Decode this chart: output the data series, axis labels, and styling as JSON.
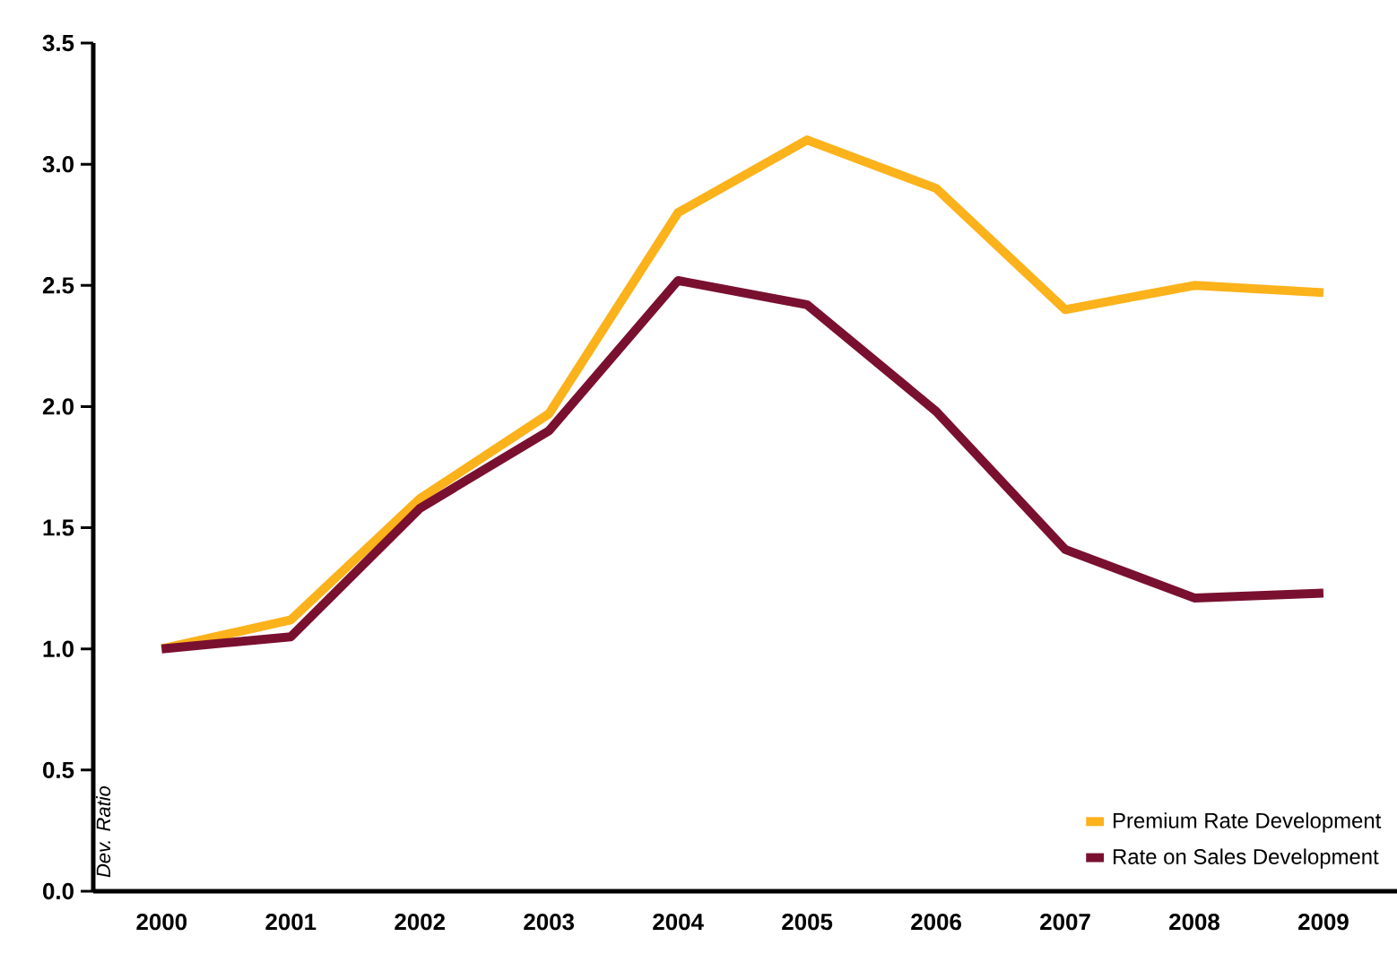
{
  "chart_data": {
    "type": "line",
    "ylabel": "Dev. Ratio",
    "categories": [
      "2000",
      "2001",
      "2002",
      "2003",
      "2004",
      "2005",
      "2006",
      "2007",
      "2008",
      "2009"
    ],
    "series": [
      {
        "name": "Premium Rate Development",
        "color": "#fbb21b",
        "values": [
          1.0,
          1.12,
          1.62,
          1.97,
          2.8,
          3.1,
          2.9,
          2.4,
          2.5,
          2.47
        ]
      },
      {
        "name": "Rate on Sales Development",
        "color": "#7a1030",
        "values": [
          1.0,
          1.05,
          1.58,
          1.9,
          2.52,
          2.42,
          1.98,
          1.41,
          1.21,
          1.23
        ]
      }
    ],
    "ylim": [
      0,
      3.5
    ],
    "yticks": [
      {
        "value": 0,
        "label": "0.0"
      },
      {
        "value": 0.5,
        "label": "0.5"
      },
      {
        "value": 1,
        "label": "1.0"
      },
      {
        "value": 1.5,
        "label": "1.5"
      },
      {
        "value": 2,
        "label": "2.0"
      },
      {
        "value": 2.5,
        "label": "2.5"
      },
      {
        "value": 3,
        "label": "3.0"
      },
      {
        "value": 3.5,
        "label": "3.5"
      }
    ],
    "legend": "bottom right",
    "grid": false,
    "line_style": "solid"
  }
}
